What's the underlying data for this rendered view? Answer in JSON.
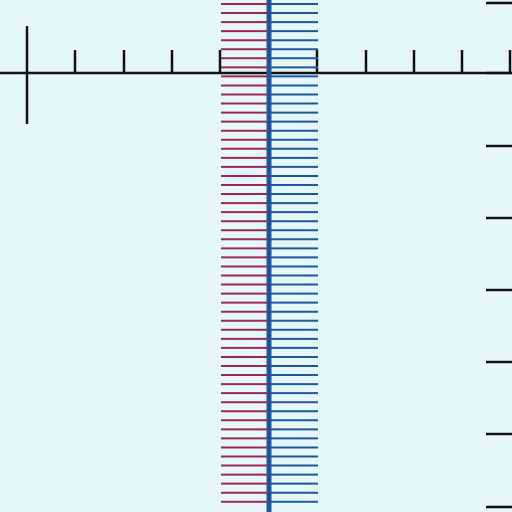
{
  "diagram": {
    "description_visible_text": "",
    "colors": {
      "background": "#e6f7fc",
      "axis": "#111111",
      "left_ticks": "#9a2a4c",
      "right_ticks": "#1e56a0",
      "center_line": "#1e56a0"
    },
    "horizontal_axis": {
      "tick_count": 10
    },
    "right_edge_scale": {
      "tick_count": 8
    },
    "left_comb": {
      "tick_count": 56
    },
    "right_comb": {
      "tick_count": 56
    }
  }
}
